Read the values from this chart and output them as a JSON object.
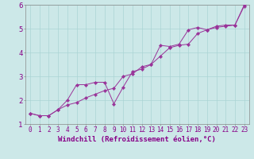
{
  "xlabel": "Windchill (Refroidissement éolien,°C)",
  "ylabel": "",
  "xlim": [
    -0.5,
    23.5
  ],
  "ylim": [
    1,
    6
  ],
  "xticks": [
    0,
    1,
    2,
    3,
    4,
    5,
    6,
    7,
    8,
    9,
    10,
    11,
    12,
    13,
    14,
    15,
    16,
    17,
    18,
    19,
    20,
    21,
    22,
    23
  ],
  "yticks": [
    1,
    2,
    3,
    4,
    5,
    6
  ],
  "bg_color": "#cce8e8",
  "line_color": "#993399",
  "marker": "D",
  "markersize": 2.2,
  "series1_x": [
    0,
    1,
    2,
    3,
    4,
    5,
    6,
    7,
    8,
    9,
    10,
    11,
    12,
    13,
    14,
    15,
    16,
    17,
    18,
    19,
    20,
    21,
    22,
    23
  ],
  "series1_y": [
    1.45,
    1.35,
    1.35,
    1.6,
    2.0,
    2.65,
    2.65,
    2.75,
    2.75,
    1.85,
    2.55,
    3.2,
    3.3,
    3.5,
    4.3,
    4.25,
    4.35,
    4.95,
    5.05,
    4.95,
    5.1,
    5.15,
    5.15,
    6.0
  ],
  "series2_x": [
    0,
    1,
    2,
    3,
    4,
    5,
    6,
    7,
    8,
    9,
    10,
    11,
    12,
    13,
    14,
    15,
    16,
    17,
    18,
    19,
    20,
    21,
    22,
    23
  ],
  "series2_y": [
    1.45,
    1.35,
    1.35,
    1.6,
    1.8,
    1.9,
    2.1,
    2.25,
    2.4,
    2.5,
    3.0,
    3.1,
    3.4,
    3.5,
    3.85,
    4.2,
    4.3,
    4.35,
    4.8,
    4.95,
    5.05,
    5.1,
    5.15,
    5.95
  ],
  "grid_color": "#aad4d4",
  "tick_fontsize": 5.5,
  "xlabel_fontsize": 6.5
}
